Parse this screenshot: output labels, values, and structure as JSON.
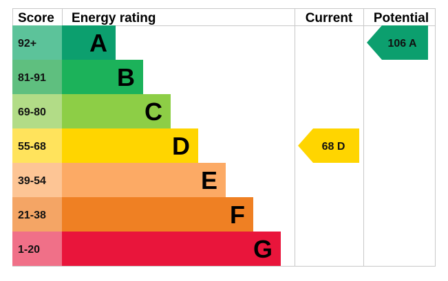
{
  "headers": {
    "score": "Score",
    "energy_rating": "Energy rating",
    "current": "Current",
    "potential": "Potential"
  },
  "chart_data": {
    "type": "bar",
    "bands": [
      {
        "score": "92+",
        "letter": "A",
        "color": "#0c9f6e",
        "score_bg": "#5cc39a"
      },
      {
        "score": "81-91",
        "letter": "B",
        "color": "#1cb25a",
        "score_bg": "#5fbf7f"
      },
      {
        "score": "69-80",
        "letter": "C",
        "color": "#8dce46",
        "score_bg": "#b2dc87"
      },
      {
        "score": "55-68",
        "letter": "D",
        "color": "#ffd500",
        "score_bg": "#ffe35c"
      },
      {
        "score": "39-54",
        "letter": "E",
        "color": "#fcaa65",
        "score_bg": "#fdc595"
      },
      {
        "score": "21-38",
        "letter": "F",
        "color": "#ef8023",
        "score_bg": "#f4a565"
      },
      {
        "score": "1-20",
        "letter": "G",
        "color": "#e9153b",
        "score_bg": "#f07088"
      }
    ],
    "current": {
      "value": 68,
      "letter": "D",
      "label": "68 D",
      "color": "#ffd500"
    },
    "potential": {
      "value": 106,
      "letter": "A",
      "label": "106 A",
      "color": "#0c9f6e"
    }
  }
}
